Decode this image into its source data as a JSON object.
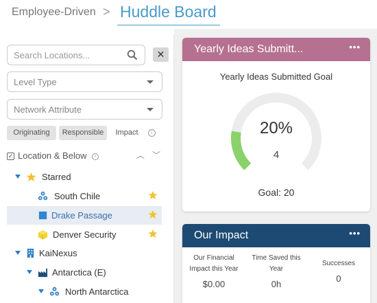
{
  "header": {
    "breadcrumb": "Employee-Driven",
    "separator": ">",
    "title": "Huddle Board"
  },
  "filters": {
    "search_placeholder": "Search Locations...",
    "clear_label": "✕",
    "level_type": "Level Type",
    "network_attribute": "Network Attribute",
    "segments": [
      "Originating",
      "Responsible",
      "Impact"
    ],
    "active_segment": "Impact"
  },
  "tree_header": {
    "label": "Location & Below"
  },
  "tree": [
    {
      "label": "Starred",
      "icon": "star-icon",
      "expanded": true
    },
    {
      "label": "South Chile",
      "icon": "network-icon",
      "starred": true
    },
    {
      "label": "Drake Passage",
      "icon": "square-icon",
      "starred": true,
      "selected": true
    },
    {
      "label": "Denver Security",
      "icon": "cube-icon",
      "starred": true
    },
    {
      "label": "KaiNexus",
      "icon": "building-icon",
      "expanded": true
    },
    {
      "label": "Antarctica (E)",
      "icon": "factory-icon",
      "expanded": true
    },
    {
      "label": "North Antarctica",
      "icon": "network-icon",
      "expanded": true
    }
  ],
  "ideas_card": {
    "title": "Yearly Ideas Submitt...",
    "menu": "•••",
    "goal_label": "Yearly Ideas Submitted Goal",
    "percent": "20%",
    "percent_value": 0.2,
    "count": "4",
    "goal": "Goal: 20",
    "header_color": "#b5718f",
    "fill_color": "#8bd26a"
  },
  "impact_card": {
    "title": "Our Impact",
    "menu": "•••",
    "header_color": "#1d4a73",
    "metrics": [
      {
        "label_l1": "Our Financial",
        "label_l2": "Impact this Year",
        "value": "$0.00"
      },
      {
        "label_l1": "Time Saved this",
        "label_l2": "Year",
        "value": "0h"
      },
      {
        "label_l1": "Successes",
        "label_l2": "",
        "value": "0"
      }
    ]
  }
}
